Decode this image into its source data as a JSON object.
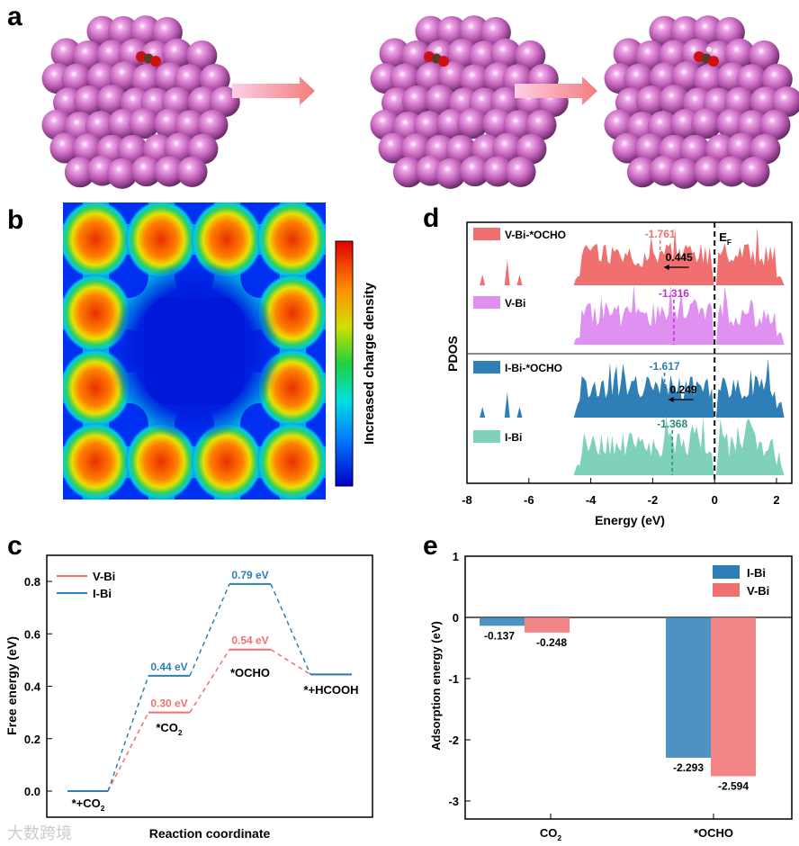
{
  "panels": {
    "a": "a",
    "b": "b",
    "c": "c",
    "d": "d",
    "e": "e"
  },
  "colors": {
    "bi_atom": "#c060b8",
    "v_bi": "#f07070",
    "i_bi": "#2e7fb5",
    "v_bi_pdos": "#e090f0",
    "i_bi_pdos": "#7fd1bc",
    "violet_marker": "#c030d0"
  },
  "panel_b": {
    "colorbar_label": "Increased charge density"
  },
  "watermark": "大数跨境",
  "chart_data": [
    {
      "panel": "c",
      "type": "line",
      "title": "",
      "xlabel": "Reaction coordinate",
      "ylabel": "Free energy (eV)",
      "ylim": [
        -0.1,
        0.9
      ],
      "yticks": [
        "0.0",
        "0.2",
        "0.4",
        "0.6",
        "0.8"
      ],
      "legend": "top-left",
      "steps": [
        "*+CO2",
        "*CO2",
        "*OCHO",
        "*+HCOOH"
      ],
      "step_labels": [
        {
          "main": "*+CO",
          "sub": "2"
        },
        {
          "main": "*CO",
          "sub": "2"
        },
        {
          "main": "*OCHO",
          "sub": ""
        },
        {
          "main": "*+HCOOH",
          "sub": ""
        }
      ],
      "series": [
        {
          "name": "V-Bi",
          "values": [
            0,
            0.3,
            0.54,
            0.445
          ],
          "labels": [
            "",
            "0.30 eV",
            "0.54 eV",
            ""
          ]
        },
        {
          "name": "I-Bi",
          "values": [
            0,
            0.44,
            0.79,
            0.445
          ],
          "labels": [
            "",
            "0.44 eV",
            "0.79 eV",
            ""
          ]
        }
      ]
    },
    {
      "panel": "d",
      "type": "area",
      "xlabel": "Energy (eV)",
      "ylabel": "PDOS",
      "xlim": [
        -8,
        2.5
      ],
      "xticks": [
        "-8",
        "-6",
        "-4",
        "-2",
        "0",
        "2"
      ],
      "fermi_label": "E",
      "fermi_sub": "F",
      "series": [
        {
          "name": "V-Bi-*OCHO",
          "d_band_center": -1.761,
          "center_label": "-1.761",
          "shift_label": "0.445"
        },
        {
          "name": "V-Bi",
          "d_band_center": -1.316,
          "center_label": "-1.316"
        },
        {
          "name": "I-Bi-*OCHO",
          "d_band_center": -1.617,
          "center_label": "-1.617",
          "shift_label": "0.249"
        },
        {
          "name": "I-Bi",
          "d_band_center": -1.368,
          "center_label": "-1.368"
        }
      ]
    },
    {
      "panel": "e",
      "type": "bar",
      "xlabel": "",
      "ylabel": "Adsorption energy (eV)",
      "ylim": [
        -3.3,
        1
      ],
      "yticks": [
        "1",
        "0",
        "-1",
        "-2",
        "-3"
      ],
      "categories": [
        {
          "main": "CO",
          "sub": "2"
        },
        {
          "main": "*OCHO",
          "sub": ""
        }
      ],
      "legend": "top-right",
      "series": [
        {
          "name": "I-Bi",
          "values": [
            -0.137,
            -2.293
          ],
          "labels": [
            "-0.137",
            "-2.293"
          ]
        },
        {
          "name": "V-Bi",
          "values": [
            -0.248,
            -2.594
          ],
          "labels": [
            "-0.248",
            "-2.594"
          ]
        }
      ]
    }
  ]
}
